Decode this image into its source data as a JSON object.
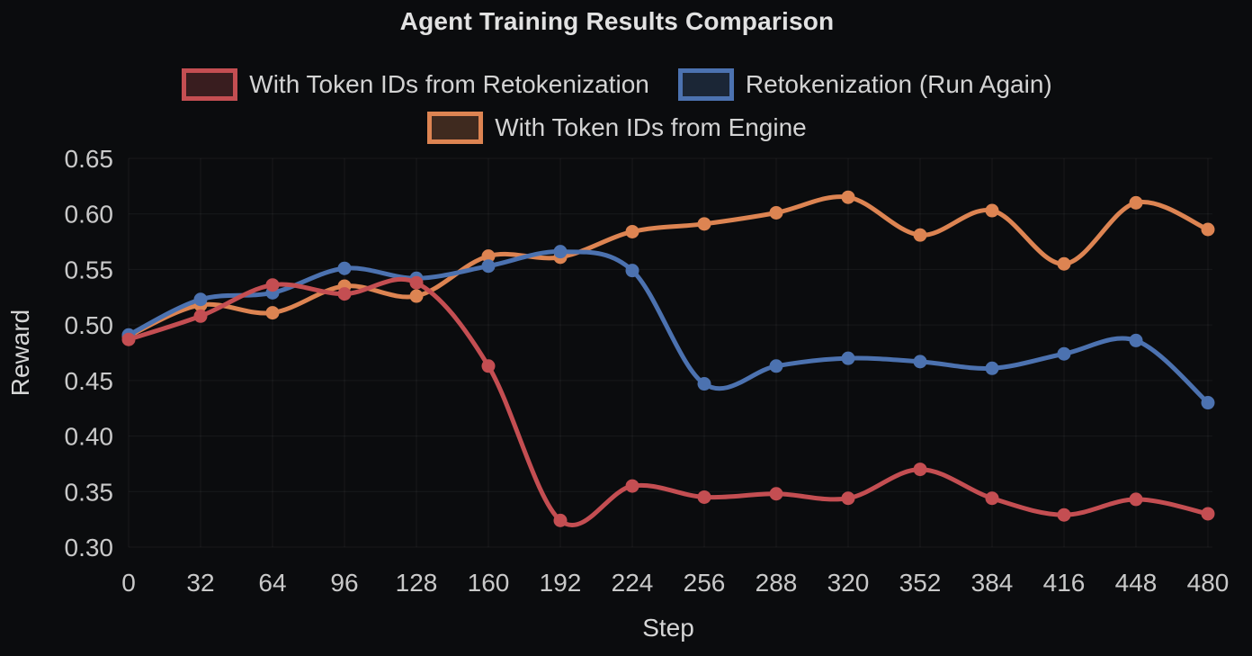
{
  "colors": {
    "background": "#0b0c0e",
    "title_text": "#e2e2e2",
    "tick_text": "#c9c9c9",
    "axis_title_text": "#d6d6d6",
    "legend_text": "#d3d3d3",
    "grid": "rgba(255,255,255,0.055)",
    "series_red": "#C44E52",
    "series_blue": "#4C72B0",
    "series_orange": "#DD8452"
  },
  "chart_data": {
    "type": "line",
    "title": "Agent Training Results Comparison",
    "xlabel": "Step",
    "ylabel": "Reward",
    "x": [
      0,
      32,
      64,
      96,
      128,
      160,
      192,
      224,
      256,
      288,
      320,
      352,
      384,
      416,
      448,
      480
    ],
    "xticks": [
      0,
      32,
      64,
      96,
      128,
      160,
      192,
      224,
      256,
      288,
      320,
      352,
      384,
      416,
      448,
      480
    ],
    "ylim": [
      0.3,
      0.65
    ],
    "yticks": [
      0.3,
      0.35,
      0.4,
      0.45,
      0.5,
      0.55,
      0.6,
      0.65
    ],
    "grid": true,
    "legend_position": "top",
    "legend_rows": [
      [
        0,
        1
      ],
      [
        2
      ]
    ],
    "series": [
      {
        "name": "With Token IDs from Retokenization",
        "color": "#C44E52",
        "values": [
          0.487,
          0.508,
          0.536,
          0.528,
          0.538,
          0.463,
          0.324,
          0.355,
          0.345,
          0.348,
          0.344,
          0.37,
          0.344,
          0.329,
          0.343,
          0.33
        ]
      },
      {
        "name": "Retokenization (Run Again)",
        "color": "#4C72B0",
        "values": [
          0.491,
          0.523,
          0.529,
          0.551,
          0.542,
          0.553,
          0.566,
          0.549,
          0.447,
          0.463,
          0.47,
          0.467,
          0.461,
          0.474,
          0.486,
          0.43
        ]
      },
      {
        "name": "With Token IDs from Engine",
        "color": "#DD8452",
        "values": [
          0.49,
          0.518,
          0.511,
          0.535,
          0.526,
          0.562,
          0.561,
          0.584,
          0.591,
          0.601,
          0.615,
          0.581,
          0.603,
          0.555,
          0.61,
          0.586
        ]
      }
    ]
  }
}
